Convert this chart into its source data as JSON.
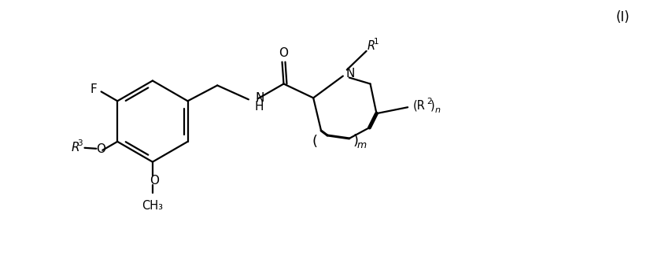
{
  "bg_color": "#ffffff",
  "line_color": "#000000",
  "line_width": 1.6,
  "figsize": [
    8.26,
    3.29
  ],
  "dpi": 100,
  "label_I": "(I)",
  "label_F": "F",
  "label_O": "O",
  "label_O2": "O",
  "label_R3": "R",
  "label_R3_sup": "3",
  "label_NH_N": "N",
  "label_NH_H": "H",
  "label_N": "N",
  "label_R1": "R",
  "label_R1_sup": "1",
  "label_R2": "R",
  "label_R2_sup": "2",
  "label_n": "n",
  "label_m": "m",
  "label_CH3": "CH",
  "label_CH3_sub": "3",
  "label_O_eq": "O"
}
